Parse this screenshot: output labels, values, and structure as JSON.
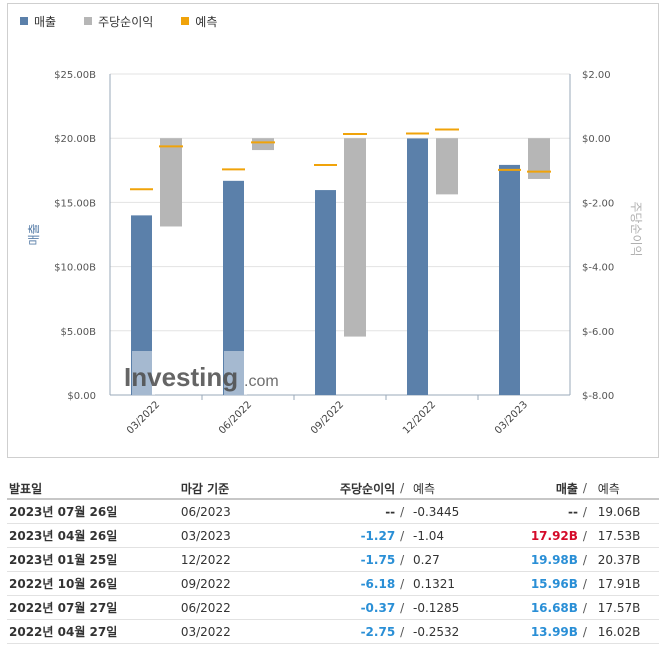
{
  "legend": [
    {
      "label": "매출",
      "color": "#5b80aa"
    },
    {
      "label": "주당순이익",
      "color": "#b6b6b6"
    },
    {
      "label": "예측",
      "color": "#f0a30a"
    }
  ],
  "watermark": {
    "brand": "Investing",
    "suffix": ".com"
  },
  "chart_data": {
    "type": "bar",
    "categories": [
      "03/2022",
      "06/2022",
      "09/2022",
      "12/2022",
      "03/2023"
    ],
    "left_axis": {
      "label": "매출",
      "ylim": [
        0,
        25
      ],
      "ticks": [
        "$0.00",
        "$5.00B",
        "$10.00B",
        "$15.00B",
        "$20.00B",
        "$25.00B"
      ]
    },
    "right_axis": {
      "label": "주당순이익",
      "ylim": [
        -8,
        2
      ],
      "ticks": [
        "$-8.00",
        "$-6.00",
        "$-4.00",
        "$-2.00",
        "$0.00",
        "$2.00"
      ]
    },
    "series": [
      {
        "name": "매출",
        "axis": "left",
        "values": [
          13.99,
          16.68,
          15.96,
          19.98,
          17.92
        ],
        "forecast": [
          16.02,
          17.57,
          17.91,
          20.37,
          17.53
        ]
      },
      {
        "name": "주당순이익",
        "axis": "right",
        "values": [
          -2.75,
          -0.37,
          -6.18,
          -1.75,
          -1.27
        ],
        "forecast": [
          -0.2532,
          -0.1285,
          0.1321,
          0.27,
          -1.04
        ]
      }
    ],
    "grid": true
  },
  "table": {
    "headers": {
      "date": "발표일",
      "period": "마감 기준",
      "eps": "주당순이익",
      "slash": "/",
      "forecast": "예측",
      "revenue": "매출"
    },
    "rows": [
      {
        "date": "2023년 07월 26일",
        "period": "06/2023",
        "eps": "--",
        "eps_class": "neu",
        "eps_forecast": "-0.3445",
        "revenue": "--",
        "rev_class": "neu",
        "rev_forecast": "19.06B"
      },
      {
        "date": "2023년 04월 26일",
        "period": "03/2023",
        "eps": "-1.27",
        "eps_class": "pos",
        "eps_forecast": "-1.04",
        "revenue": "17.92B",
        "rev_class": "neg",
        "rev_forecast": "17.53B"
      },
      {
        "date": "2023년 01월 25일",
        "period": "12/2022",
        "eps": "-1.75",
        "eps_class": "pos",
        "eps_forecast": "0.27",
        "revenue": "19.98B",
        "rev_class": "pos",
        "rev_forecast": "20.37B"
      },
      {
        "date": "2022년 10월 26일",
        "period": "09/2022",
        "eps": "-6.18",
        "eps_class": "pos",
        "eps_forecast": "0.1321",
        "revenue": "15.96B",
        "rev_class": "pos",
        "rev_forecast": "17.91B"
      },
      {
        "date": "2022년 07월 27일",
        "period": "06/2022",
        "eps": "-0.37",
        "eps_class": "pos",
        "eps_forecast": "-0.1285",
        "revenue": "16.68B",
        "rev_class": "pos",
        "rev_forecast": "17.57B"
      },
      {
        "date": "2022년 04월 27일",
        "period": "03/2022",
        "eps": "-2.75",
        "eps_class": "pos",
        "eps_forecast": "-0.2532",
        "revenue": "13.99B",
        "rev_class": "pos",
        "rev_forecast": "16.02B"
      }
    ]
  }
}
